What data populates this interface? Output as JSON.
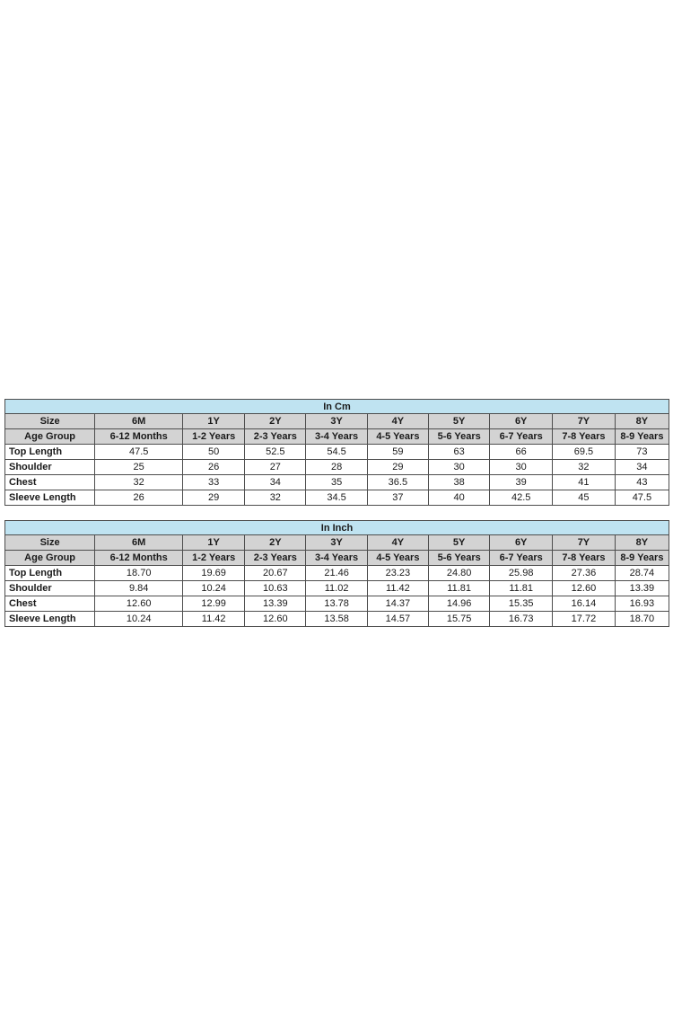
{
  "colors": {
    "title_bg": "#bfe3f1",
    "header_bg": "#d3d3d3",
    "border": "#4d4d4d",
    "text": "#1a1a1a",
    "page_bg": "#ffffff"
  },
  "tables": [
    {
      "title": "In Cm",
      "size_row": {
        "label": "Size",
        "values": [
          "6M",
          "1Y",
          "2Y",
          "3Y",
          "4Y",
          "5Y",
          "6Y",
          "7Y",
          "8Y"
        ]
      },
      "age_row": {
        "label": "Age Group",
        "values": [
          "6-12 Months",
          "1-2 Years",
          "2-3 Years",
          "3-4 Years",
          "4-5 Years",
          "5-6 Years",
          "6-7 Years",
          "7-8 Years",
          "8-9 Years"
        ]
      },
      "measure_rows": [
        {
          "label": "Top Length",
          "values": [
            "47.5",
            "50",
            "52.5",
            "54.5",
            "59",
            "63",
            "66",
            "69.5",
            "73"
          ]
        },
        {
          "label": "Shoulder",
          "values": [
            "25",
            "26",
            "27",
            "28",
            "29",
            "30",
            "30",
            "32",
            "34"
          ]
        },
        {
          "label": "Chest",
          "values": [
            "32",
            "33",
            "34",
            "35",
            "36.5",
            "38",
            "39",
            "41",
            "43"
          ]
        },
        {
          "label": "Sleeve Length",
          "values": [
            "26",
            "29",
            "32",
            "34.5",
            "37",
            "40",
            "42.5",
            "45",
            "47.5"
          ]
        }
      ]
    },
    {
      "title": "In Inch",
      "size_row": {
        "label": "Size",
        "values": [
          "6M",
          "1Y",
          "2Y",
          "3Y",
          "4Y",
          "5Y",
          "6Y",
          "7Y",
          "8Y"
        ]
      },
      "age_row": {
        "label": "Age Group",
        "values": [
          "6-12 Months",
          "1-2 Years",
          "2-3 Years",
          "3-4 Years",
          "4-5 Years",
          "5-6 Years",
          "6-7 Years",
          "7-8 Years",
          "8-9 Years"
        ]
      },
      "measure_rows": [
        {
          "label": "Top Length",
          "values": [
            "18.70",
            "19.69",
            "20.67",
            "21.46",
            "23.23",
            "24.80",
            "25.98",
            "27.36",
            "28.74"
          ]
        },
        {
          "label": "Shoulder",
          "values": [
            "9.84",
            "10.24",
            "10.63",
            "11.02",
            "11.42",
            "11.81",
            "11.81",
            "12.60",
            "13.39"
          ]
        },
        {
          "label": "Chest",
          "values": [
            "12.60",
            "12.99",
            "13.39",
            "13.78",
            "14.37",
            "14.96",
            "15.35",
            "16.14",
            "16.93"
          ]
        },
        {
          "label": "Sleeve Length",
          "values": [
            "10.24",
            "11.42",
            "12.60",
            "13.58",
            "14.57",
            "15.75",
            "16.73",
            "17.72",
            "18.70"
          ]
        }
      ]
    }
  ]
}
